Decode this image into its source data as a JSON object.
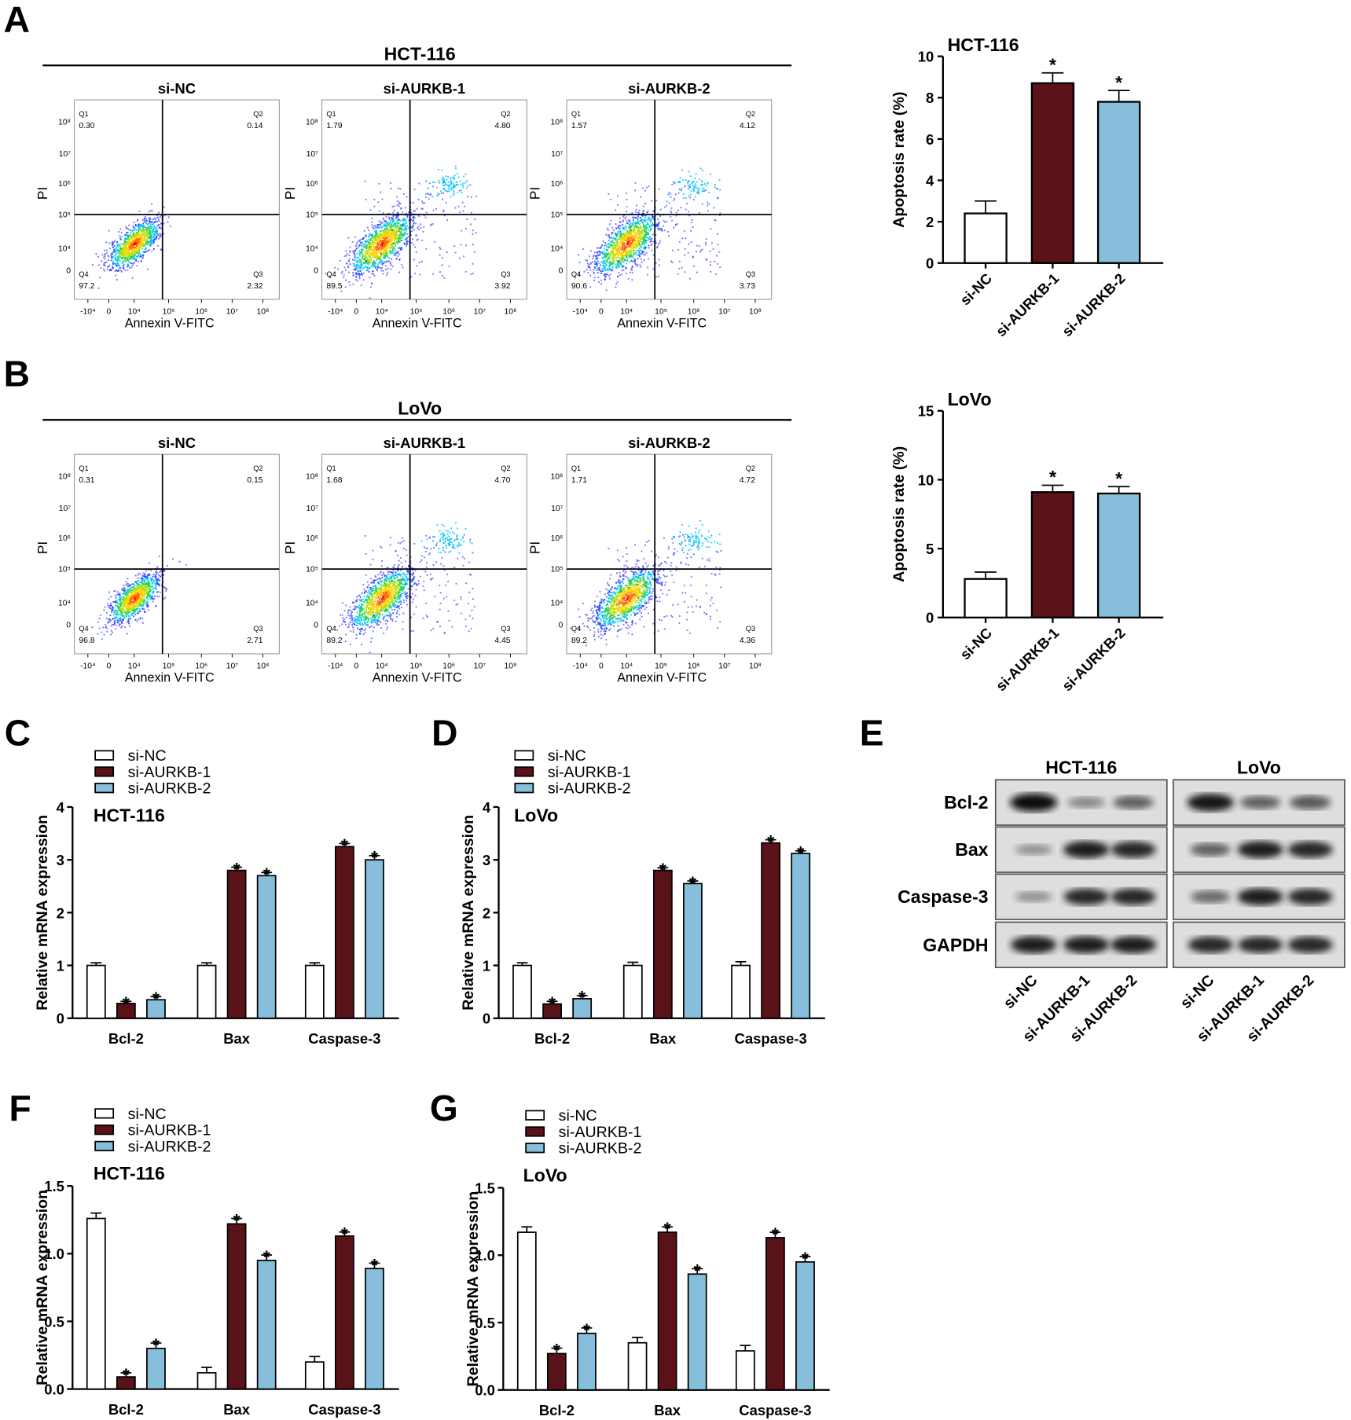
{
  "colors": {
    "si-NC": "#ffffff",
    "si-AURKB-1": "#5a1219",
    "si-AURKB-2": "#86bedb",
    "outline": "#000000"
  },
  "groups": [
    "si-NC",
    "si-AURKB-1",
    "si-AURKB-2"
  ],
  "flow_panels": [
    {
      "letter": "A",
      "cell_line": "HCT-116",
      "plots": [
        {
          "title": "si-NC",
          "Q1": "0.30",
          "Q2": "0.14",
          "Q3": "2.32",
          "Q4": "97.2"
        },
        {
          "title": "si-AURKB-1",
          "Q1": "1.79",
          "Q2": "4.80",
          "Q3": "3.92",
          "Q4": "89.5"
        },
        {
          "title": "si-AURKB-2",
          "Q1": "1.57",
          "Q2": "4.12",
          "Q3": "3.73",
          "Q4": "90.6"
        }
      ]
    },
    {
      "letter": "B",
      "cell_line": "LoVo",
      "plots": [
        {
          "title": "si-NC",
          "Q1": "0.31",
          "Q2": "0.15",
          "Q3": "2.71",
          "Q4": "96.8"
        },
        {
          "title": "si-AURKB-1",
          "Q1": "1.68",
          "Q2": "4.70",
          "Q3": "4.45",
          "Q4": "89.2"
        },
        {
          "title": "si-AURKB-2",
          "Q1": "1.71",
          "Q2": "4.72",
          "Q3": "4.36",
          "Q4": "89.2"
        }
      ]
    }
  ],
  "flow_axes": {
    "xlabel": "Annexin V-FITC",
    "ylabel": "PI",
    "xticks": [
      "-10⁴",
      "0",
      "10⁴",
      "10⁵",
      "10⁶",
      "10⁷",
      "10⁸"
    ],
    "yticks": [
      "10⁸",
      "10⁷",
      "10⁶",
      "10⁵",
      "10⁴",
      "0"
    ],
    "quadrants": [
      "Q1",
      "Q2",
      "Q3",
      "Q4"
    ]
  },
  "chart_data": [
    {
      "id": "A-bar",
      "type": "bar",
      "title": "HCT-116",
      "ylabel": "Apoptosis rate (%)",
      "ylim": [
        0,
        10
      ],
      "yticks": [
        "0",
        "2",
        "4",
        "6",
        "8",
        "10"
      ],
      "categories": [
        "si-NC",
        "si-AURKB-1",
        "si-AURKB-2"
      ],
      "values": [
        2.4,
        8.7,
        7.8
      ],
      "errors": [
        0.6,
        0.5,
        0.55
      ],
      "significance": [
        "",
        "*",
        "*"
      ]
    },
    {
      "id": "B-bar",
      "type": "bar",
      "title": "LoVo",
      "ylabel": "Apoptosis rate (%)",
      "ylim": [
        0,
        15
      ],
      "yticks": [
        "0",
        "5",
        "10",
        "15"
      ],
      "categories": [
        "si-NC",
        "si-AURKB-1",
        "si-AURKB-2"
      ],
      "values": [
        2.8,
        9.1,
        9.0
      ],
      "errors": [
        0.5,
        0.5,
        0.5
      ],
      "significance": [
        "",
        "*",
        "*"
      ]
    },
    {
      "id": "C",
      "letter": "C",
      "type": "bar",
      "title": "HCT-116",
      "ylabel": "Relative mRNA expression",
      "ylim": [
        0,
        4
      ],
      "yticks": [
        "0",
        "1",
        "2",
        "3",
        "4"
      ],
      "categories": [
        "Bcl-2",
        "Bax",
        "Caspase-3"
      ],
      "legend": [
        "si-NC",
        "si-AURKB-1",
        "si-AURKB-2"
      ],
      "series": [
        {
          "name": "si-NC",
          "values": [
            1.0,
            1.0,
            1.0
          ],
          "errors": [
            0.05,
            0.05,
            0.05
          ],
          "significance": [
            "",
            "",
            ""
          ]
        },
        {
          "name": "si-AURKB-1",
          "values": [
            0.28,
            2.8,
            3.25
          ],
          "errors": [
            0.04,
            0.06,
            0.06
          ],
          "significance": [
            "*",
            "*",
            "*"
          ]
        },
        {
          "name": "si-AURKB-2",
          "values": [
            0.35,
            2.7,
            3.0
          ],
          "errors": [
            0.06,
            0.06,
            0.08
          ],
          "significance": [
            "*",
            "*",
            "*"
          ]
        }
      ]
    },
    {
      "id": "D",
      "letter": "D",
      "type": "bar",
      "title": "LoVo",
      "ylabel": "Relative mRNA expression",
      "ylim": [
        0,
        4
      ],
      "yticks": [
        "0",
        "1",
        "2",
        "3",
        "4"
      ],
      "categories": [
        "Bcl-2",
        "Bax",
        "Caspase-3"
      ],
      "legend": [
        "si-NC",
        "si-AURKB-1",
        "si-AURKB-2"
      ],
      "series": [
        {
          "name": "si-NC",
          "values": [
            1.0,
            1.0,
            1.0
          ],
          "errors": [
            0.05,
            0.06,
            0.07
          ],
          "significance": [
            "",
            "",
            ""
          ]
        },
        {
          "name": "si-AURKB-1",
          "values": [
            0.27,
            2.8,
            3.32
          ],
          "errors": [
            0.05,
            0.05,
            0.06
          ],
          "significance": [
            "*",
            "*",
            "*"
          ]
        },
        {
          "name": "si-AURKB-2",
          "values": [
            0.37,
            2.55,
            3.12
          ],
          "errors": [
            0.06,
            0.05,
            0.05
          ],
          "significance": [
            "*",
            "*",
            "*"
          ]
        }
      ]
    },
    {
      "id": "F",
      "letter": "F",
      "type": "bar",
      "title": "HCT-116",
      "ylabel": "Relative mRNA expression",
      "ylim": [
        0,
        1.5
      ],
      "yticks": [
        "0.0",
        "0.5",
        "1.0",
        "1.5"
      ],
      "categories": [
        "Bcl-2",
        "Bax",
        "Caspase-3"
      ],
      "legend": [
        "si-NC",
        "si-AURKB-1",
        "si-AURKB-2"
      ],
      "series": [
        {
          "name": "si-NC",
          "values": [
            1.26,
            0.12,
            0.2
          ],
          "errors": [
            0.04,
            0.04,
            0.04
          ],
          "significance": [
            "",
            "",
            ""
          ]
        },
        {
          "name": "si-AURKB-1",
          "values": [
            0.09,
            1.22,
            1.13
          ],
          "errors": [
            0.03,
            0.04,
            0.03
          ],
          "significance": [
            "*",
            "*",
            "*"
          ]
        },
        {
          "name": "si-AURKB-2",
          "values": [
            0.3,
            0.95,
            0.89
          ],
          "errors": [
            0.04,
            0.04,
            0.04
          ],
          "significance": [
            "*",
            "*",
            "*"
          ]
        }
      ]
    },
    {
      "id": "G",
      "letter": "G",
      "type": "bar",
      "title": "LoVo",
      "ylabel": "Relative mRNA expression",
      "ylim": [
        0,
        1.5
      ],
      "yticks": [
        "0.0",
        "0.5",
        "1.0",
        "1.5"
      ],
      "categories": [
        "Bcl-2",
        "Bax",
        "Caspase-3"
      ],
      "legend": [
        "si-NC",
        "si-AURKB-1",
        "si-AURKB-2"
      ],
      "series": [
        {
          "name": "si-NC",
          "values": [
            1.17,
            0.35,
            0.29
          ],
          "errors": [
            0.04,
            0.04,
            0.04
          ],
          "significance": [
            "",
            "",
            ""
          ]
        },
        {
          "name": "si-AURKB-1",
          "values": [
            0.27,
            1.17,
            1.13
          ],
          "errors": [
            0.04,
            0.04,
            0.04
          ],
          "significance": [
            "*",
            "*",
            "*"
          ]
        },
        {
          "name": "si-AURKB-2",
          "values": [
            0.42,
            0.86,
            0.95
          ],
          "errors": [
            0.04,
            0.04,
            0.04
          ],
          "significance": [
            "*",
            "*",
            "*"
          ]
        }
      ]
    }
  ],
  "western_blot": {
    "letter": "E",
    "cell_lines": [
      "HCT-116",
      "LoVo"
    ],
    "proteins": [
      "Bcl-2",
      "Bax",
      "Caspase-3",
      "GAPDH"
    ],
    "lanes": [
      "si-NC",
      "si-AURKB-1",
      "si-AURKB-2"
    ],
    "band_intensity": {
      "HCT-116": [
        [
          1.0,
          0.35,
          0.55
        ],
        [
          0.3,
          0.9,
          0.85
        ],
        [
          0.3,
          0.85,
          0.85
        ],
        [
          0.9,
          0.9,
          0.9
        ]
      ],
      "LoVo": [
        [
          0.95,
          0.55,
          0.6
        ],
        [
          0.55,
          0.9,
          0.85
        ],
        [
          0.5,
          0.9,
          0.85
        ],
        [
          0.85,
          0.85,
          0.85
        ]
      ]
    }
  }
}
